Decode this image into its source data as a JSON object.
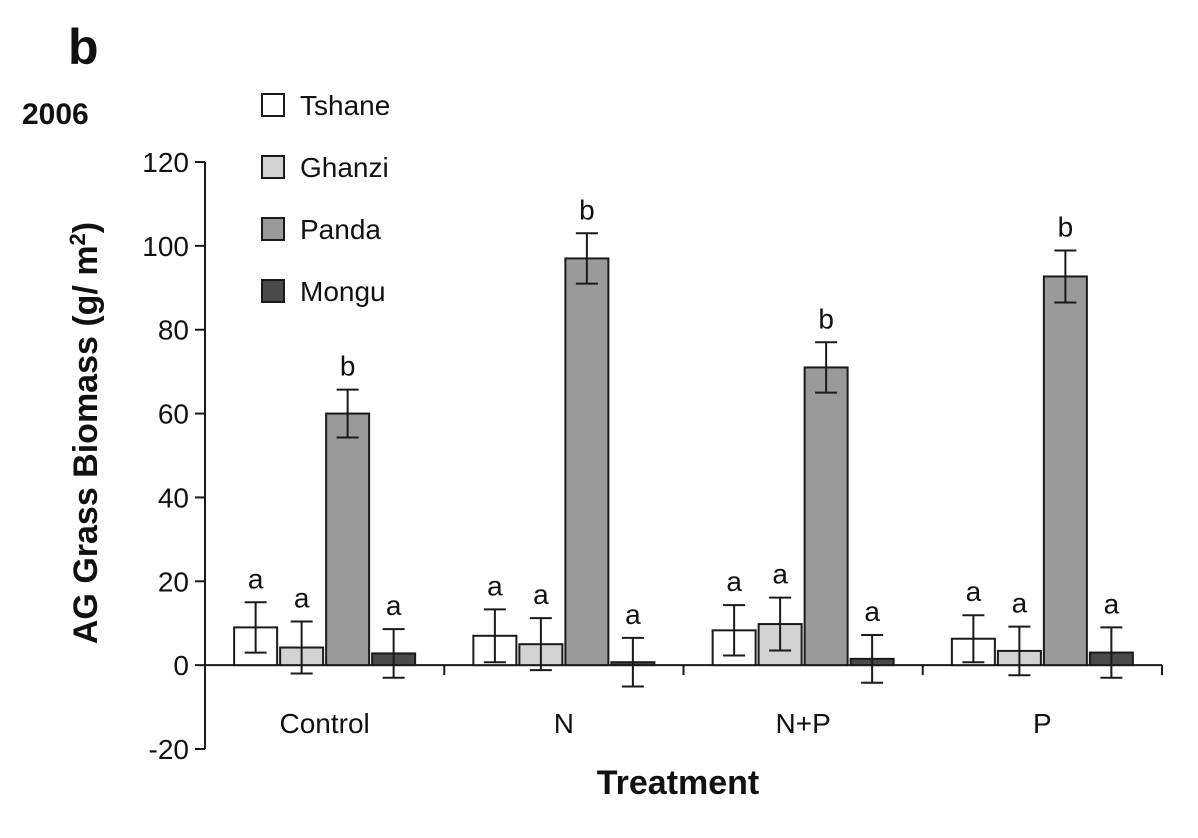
{
  "panel_label": "b",
  "year_label": "2006",
  "colors": {
    "Tshane": "#ffffff",
    "Ghanzi": "#d2d2d2",
    "Panda": "#9a9a9a",
    "Mongu": "#4a4a4a",
    "stroke": "#1a1a1a"
  },
  "chart_data": {
    "type": "bar",
    "title": "",
    "xlabel": "Treatment",
    "ylabel": "AG Grass Biomass (g/ m²)",
    "ylabel_main": "AG Grass Biomass (g/ m",
    "ylabel_sup": "2",
    "ylabel_end": ")",
    "ylim": [
      -20,
      120
    ],
    "yticks": [
      -20,
      0,
      20,
      40,
      60,
      80,
      100,
      120
    ],
    "categories": [
      "Control",
      "N",
      "N+P",
      "P"
    ],
    "legend_position": "top-left",
    "series": [
      {
        "name": "Tshane",
        "values": [
          9,
          7,
          8.3,
          6.3
        ],
        "errors": [
          6,
          6.3,
          6,
          5.6
        ],
        "letters": [
          "a",
          "a",
          "a",
          "a"
        ]
      },
      {
        "name": "Ghanzi",
        "values": [
          4.2,
          5,
          9.8,
          3.4
        ],
        "errors": [
          6.2,
          6.2,
          6.3,
          5.8
        ],
        "letters": [
          "a",
          "a",
          "a",
          "a"
        ]
      },
      {
        "name": "Panda",
        "values": [
          60,
          97,
          71,
          92.7
        ],
        "errors": [
          5.7,
          6,
          6,
          6.2
        ],
        "letters": [
          "b",
          "b",
          "b",
          "b"
        ]
      },
      {
        "name": "Mongu",
        "values": [
          2.8,
          0.7,
          1.5,
          3
        ],
        "errors": [
          5.8,
          5.8,
          5.7,
          6
        ],
        "letters": [
          "a",
          "a",
          "a",
          "a"
        ]
      }
    ]
  }
}
